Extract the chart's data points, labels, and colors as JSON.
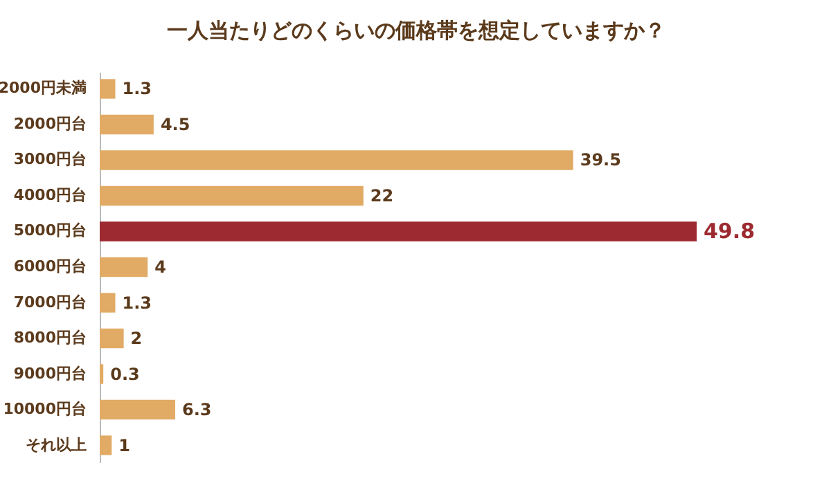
{
  "chart_data": {
    "type": "bar",
    "orientation": "horizontal",
    "title": "一人当たりどのくらいの価格帯を想定していますか？",
    "categories": [
      "2000円未満",
      "2000円台",
      "3000円台",
      "4000円台",
      "5000円台",
      "6000円台",
      "7000円台",
      "8000円台",
      "9000円台",
      "10000円台",
      "それ以上"
    ],
    "values": [
      1.3,
      4.5,
      39.5,
      22,
      49.8,
      4,
      1.3,
      2,
      0.3,
      6.3,
      1
    ],
    "colors": [
      "#e1ab66",
      "#e1ab66",
      "#e1ab66",
      "#e1ab66",
      "#9c2a30",
      "#e1ab66",
      "#e1ab66",
      "#e1ab66",
      "#e1ab66",
      "#e1ab66",
      "#e1ab66"
    ],
    "data_labels": true
  }
}
